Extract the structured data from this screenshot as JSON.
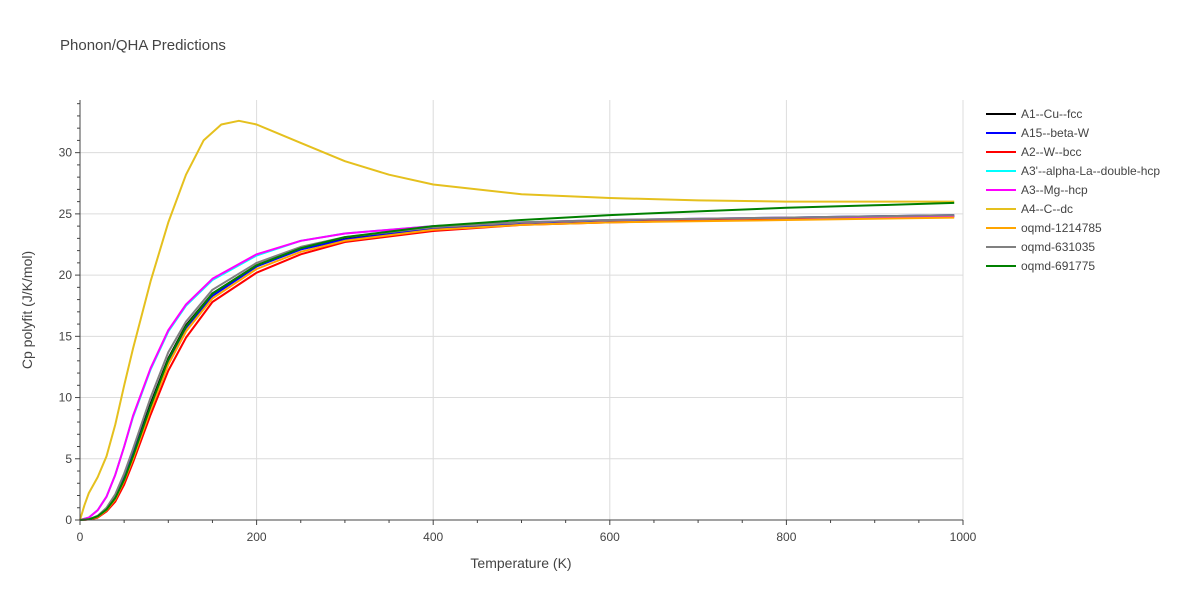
{
  "chart_data": {
    "type": "line",
    "title": "Phonon/QHA Predictions",
    "xlabel": "Temperature (K)",
    "ylabel": "Cp polyfit (J/K/mol)",
    "xlim": [
      0,
      1000
    ],
    "ylim": [
      0,
      34.3
    ],
    "x_ticks": [
      0,
      200,
      400,
      600,
      800,
      1000
    ],
    "y_ticks": [
      0,
      5,
      10,
      15,
      20,
      25,
      30
    ],
    "grid": true,
    "legend_position": "right",
    "series": [
      {
        "name": "A1--Cu--fcc",
        "color": "#000000",
        "x": [
          0,
          10,
          20,
          30,
          40,
          50,
          60,
          80,
          100,
          120,
          150,
          200,
          250,
          300,
          400,
          500,
          600,
          800,
          990
        ],
        "y": [
          0,
          0.05,
          0.3,
          0.9,
          1.9,
          3.5,
          5.4,
          9.5,
          13.2,
          15.9,
          18.5,
          20.8,
          22.2,
          23.0,
          23.8,
          24.2,
          24.4,
          24.6,
          24.8
        ]
      },
      {
        "name": "A15--beta-W",
        "color": "#0000ff",
        "x": [
          0,
          10,
          20,
          30,
          40,
          50,
          60,
          80,
          100,
          120,
          150,
          200,
          250,
          300,
          400,
          500,
          600,
          800,
          990
        ],
        "y": [
          0,
          0.05,
          0.3,
          0.9,
          1.9,
          3.4,
          5.3,
          9.3,
          13.0,
          15.7,
          18.3,
          20.7,
          22.1,
          22.9,
          23.8,
          24.2,
          24.4,
          24.7,
          24.9
        ]
      },
      {
        "name": "A2--W--bcc",
        "color": "#ff0000",
        "x": [
          0,
          10,
          20,
          30,
          40,
          50,
          60,
          80,
          100,
          120,
          150,
          200,
          250,
          300,
          400,
          500,
          600,
          800,
          990
        ],
        "y": [
          0,
          0.04,
          0.2,
          0.7,
          1.5,
          2.9,
          4.7,
          8.6,
          12.2,
          14.9,
          17.8,
          20.2,
          21.7,
          22.7,
          23.6,
          24.1,
          24.3,
          24.6,
          24.8
        ]
      },
      {
        "name": "A3'--alpha-La--double-hcp",
        "color": "#00ffff",
        "x": [
          0,
          10,
          20,
          30,
          40,
          50,
          60,
          80,
          100,
          120,
          150,
          200,
          250,
          300,
          400,
          500,
          600,
          800,
          990
        ],
        "y": [
          0,
          0.2,
          0.8,
          1.9,
          3.7,
          6.0,
          8.4,
          12.3,
          15.4,
          17.5,
          19.6,
          21.6,
          22.8,
          23.4,
          24.0,
          24.3,
          24.5,
          24.7,
          24.8
        ]
      },
      {
        "name": "A3--Mg--hcp",
        "color": "#ff00ff",
        "x": [
          0,
          10,
          20,
          30,
          40,
          50,
          60,
          80,
          100,
          120,
          150,
          200,
          250,
          300,
          400,
          500,
          600,
          800,
          990
        ],
        "y": [
          0,
          0.2,
          0.8,
          1.9,
          3.7,
          6.0,
          8.5,
          12.4,
          15.5,
          17.6,
          19.7,
          21.7,
          22.8,
          23.4,
          24.0,
          24.3,
          24.5,
          24.7,
          24.8
        ]
      },
      {
        "name": "A4--C--dc",
        "color": "#e5c01e",
        "x": [
          0,
          5,
          10,
          20,
          30,
          40,
          50,
          60,
          80,
          100,
          120,
          140,
          160,
          180,
          200,
          250,
          300,
          350,
          400,
          500,
          600,
          700,
          800,
          900,
          990
        ],
        "y": [
          0,
          1.2,
          2.2,
          3.5,
          5.2,
          7.8,
          11.0,
          14.0,
          19.5,
          24.3,
          28.2,
          31.0,
          32.3,
          32.6,
          32.3,
          30.8,
          29.3,
          28.2,
          27.4,
          26.6,
          26.3,
          26.1,
          26.0,
          26.0,
          26.0
        ]
      },
      {
        "name": "oqmd-1214785",
        "color": "#ffa500",
        "x": [
          0,
          10,
          20,
          30,
          40,
          50,
          60,
          80,
          100,
          120,
          150,
          200,
          250,
          300,
          400,
          500,
          600,
          800,
          990
        ],
        "y": [
          0,
          0.05,
          0.25,
          0.8,
          1.7,
          3.2,
          5.0,
          9.0,
          12.7,
          15.4,
          18.1,
          20.5,
          21.9,
          22.8,
          23.7,
          24.1,
          24.3,
          24.5,
          24.7
        ]
      },
      {
        "name": "oqmd-631035",
        "color": "#808080",
        "x": [
          0,
          10,
          20,
          30,
          40,
          50,
          60,
          80,
          100,
          120,
          150,
          200,
          250,
          300,
          400,
          500,
          600,
          800,
          990
        ],
        "y": [
          0,
          0.06,
          0.35,
          1.0,
          2.1,
          3.8,
          5.8,
          10.0,
          13.7,
          16.2,
          18.8,
          21.0,
          22.3,
          23.1,
          23.9,
          24.3,
          24.5,
          24.7,
          24.9
        ]
      },
      {
        "name": "oqmd-691775",
        "color": "#008000",
        "x": [
          0,
          10,
          20,
          30,
          40,
          50,
          60,
          80,
          100,
          120,
          150,
          200,
          250,
          300,
          400,
          500,
          600,
          700,
          800,
          900,
          990
        ],
        "y": [
          0,
          0.05,
          0.3,
          0.85,
          1.8,
          3.3,
          5.2,
          9.3,
          13.1,
          15.8,
          18.5,
          20.8,
          22.2,
          23.1,
          24.0,
          24.5,
          24.9,
          25.2,
          25.5,
          25.7,
          25.9
        ]
      }
    ]
  }
}
